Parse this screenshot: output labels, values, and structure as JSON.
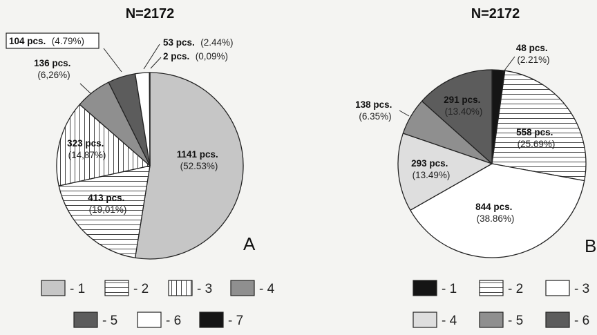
{
  "colors": {
    "black": "#151515",
    "dark": "#5c5c5c",
    "medium": "#8f8f8f",
    "light": "#c6c6c6",
    "lighter": "#dedede",
    "white": "#ffffff",
    "stroke": "#222222"
  },
  "chart_data": [
    {
      "type": "pie",
      "title": "N=2172",
      "panel_label": "A",
      "slices": [
        {
          "category": "1",
          "count_label": "1141 pcs.",
          "percent_label": "(52.53%)",
          "value": 1141,
          "fill": "light",
          "hatch": "none"
        },
        {
          "category": "2",
          "count_label": "413 pcs.",
          "percent_label": "(19,01%)",
          "value": 413,
          "fill": "white",
          "hatch": "horizontal"
        },
        {
          "category": "3",
          "count_label": "323 pcs.",
          "percent_label": "(14,87%)",
          "value": 323,
          "fill": "white",
          "hatch": "vertical"
        },
        {
          "category": "4",
          "count_label": "136 pcs.",
          "percent_label": "(6,26%)",
          "value": 136,
          "fill": "medium",
          "hatch": "none"
        },
        {
          "category": "5",
          "count_label": "104 pcs.",
          "percent_label": "(4.79%)",
          "value": 104,
          "fill": "dark",
          "hatch": "none"
        },
        {
          "category": "6",
          "count_label": "53 pcs.",
          "percent_label": "(2.44%)",
          "value": 53,
          "fill": "white",
          "hatch": "none"
        },
        {
          "category": "7",
          "count_label": "2 pcs.",
          "percent_label": "(0,09%)",
          "value": 2,
          "fill": "black",
          "hatch": "none"
        }
      ],
      "legend": [
        {
          "label": "- 1",
          "fill": "light",
          "hatch": "none"
        },
        {
          "label": "- 2",
          "fill": "white",
          "hatch": "horizontal"
        },
        {
          "label": "- 3",
          "fill": "white",
          "hatch": "vertical"
        },
        {
          "label": "- 4",
          "fill": "medium",
          "hatch": "none"
        },
        {
          "label": "- 5",
          "fill": "dark",
          "hatch": "none"
        },
        {
          "label": "- 6",
          "fill": "white",
          "hatch": "none"
        },
        {
          "label": "- 7",
          "fill": "black",
          "hatch": "none"
        }
      ]
    },
    {
      "type": "pie",
      "title": "N=2172",
      "panel_label": "B",
      "slices": [
        {
          "category": "1",
          "count_label": "48 pcs.",
          "percent_label": "(2.21%)",
          "value": 48,
          "fill": "black",
          "hatch": "none"
        },
        {
          "category": "2",
          "count_label": "558 pcs.",
          "percent_label": "(25.69%)",
          "value": 558,
          "fill": "white",
          "hatch": "horizontal"
        },
        {
          "category": "3",
          "count_label": "844 pcs.",
          "percent_label": "(38.86%)",
          "value": 844,
          "fill": "white",
          "hatch": "none"
        },
        {
          "category": "4",
          "count_label": "293 pcs.",
          "percent_label": "(13.49%)",
          "value": 293,
          "fill": "lighter",
          "hatch": "none"
        },
        {
          "category": "5",
          "count_label": "138 pcs.",
          "percent_label": "(6.35%)",
          "value": 138,
          "fill": "medium",
          "hatch": "none"
        },
        {
          "category": "6",
          "count_label": "291 pcs.",
          "percent_label": "(13.40%)",
          "value": 291,
          "fill": "dark",
          "hatch": "none"
        }
      ],
      "legend": [
        {
          "label": "- 1",
          "fill": "black",
          "hatch": "none"
        },
        {
          "label": "- 2",
          "fill": "white",
          "hatch": "horizontal"
        },
        {
          "label": "- 3",
          "fill": "white",
          "hatch": "none"
        },
        {
          "label": "- 4",
          "fill": "lighter",
          "hatch": "none"
        },
        {
          "label": "- 5",
          "fill": "medium",
          "hatch": "none"
        },
        {
          "label": "- 6",
          "fill": "dark",
          "hatch": "none"
        }
      ]
    }
  ]
}
